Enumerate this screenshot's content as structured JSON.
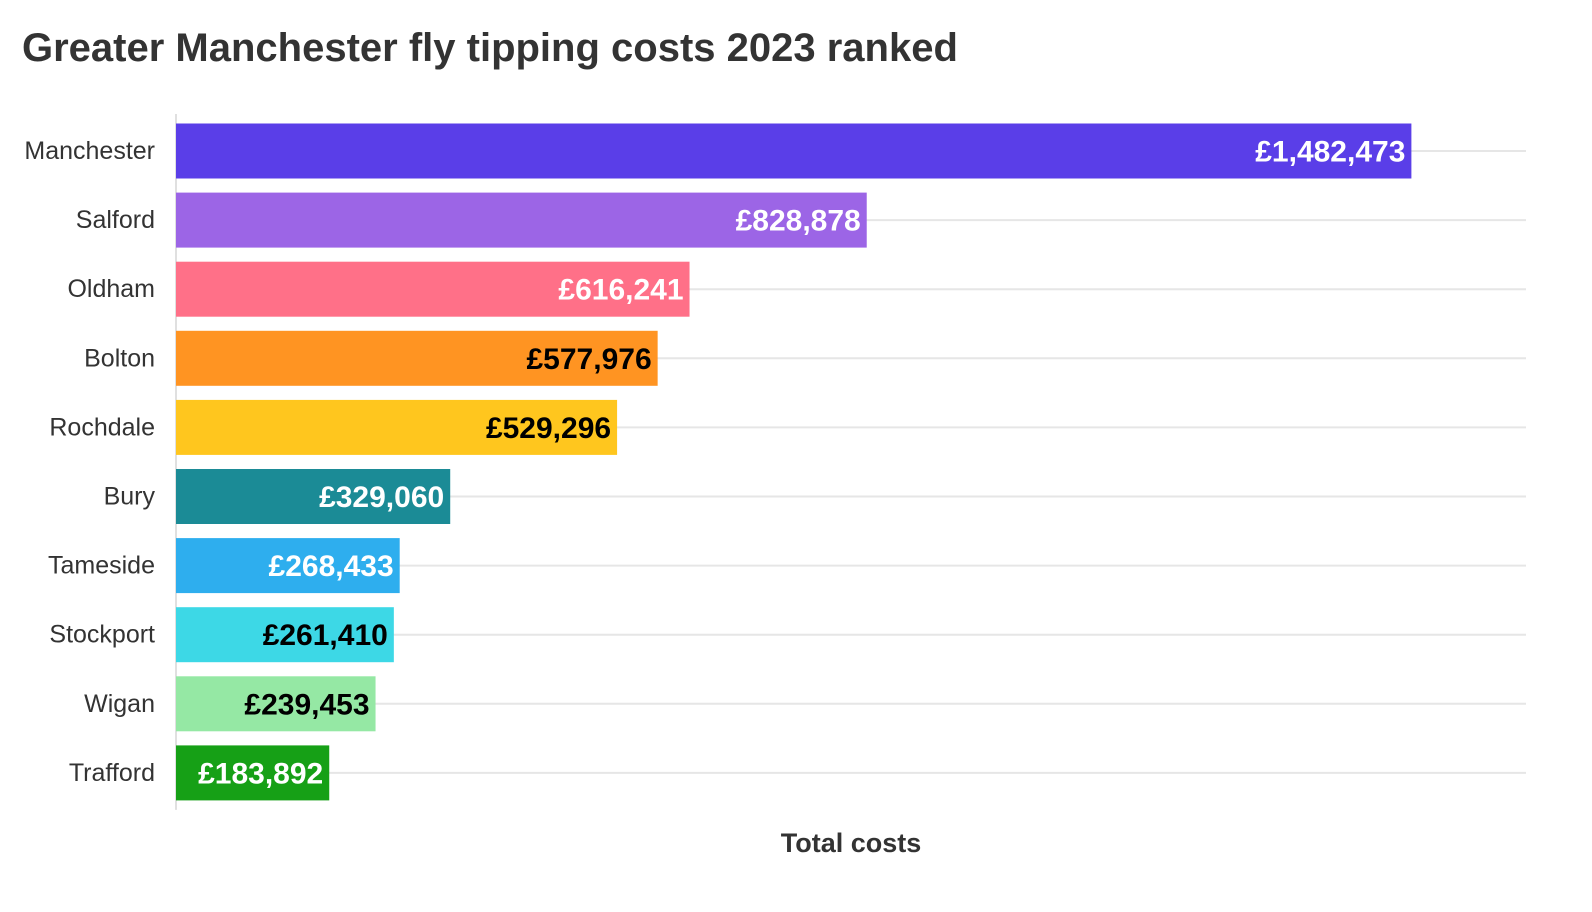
{
  "chart_data": {
    "type": "bar",
    "orientation": "horizontal",
    "title": "Greater Manchester fly tipping costs 2023 ranked",
    "xlabel": "Total costs",
    "ylabel": "",
    "xlim": [
      0,
      1620000
    ],
    "grid": true,
    "legend": "none",
    "categories": [
      "Manchester",
      "Salford",
      "Oldham",
      "Bolton",
      "Rochdale",
      "Bury",
      "Tameside",
      "Stockport",
      "Wigan",
      "Trafford"
    ],
    "values": [
      1482473,
      828878,
      616241,
      577976,
      529296,
      329060,
      268433,
      261410,
      239453,
      183892
    ],
    "value_labels": [
      "£1,482,473",
      "£828,878",
      "£616,241",
      "£577,976",
      "£529,296",
      "£329,060",
      "£268,433",
      "£261,410",
      "£239,453",
      "£183,892"
    ],
    "colors": [
      "#5a3ee8",
      "#9c65e6",
      "#ff7088",
      "#ff9422",
      "#ffc61e",
      "#1b8b96",
      "#2eaeee",
      "#3dd8e6",
      "#95e8a4",
      "#16a016"
    ],
    "label_colors": [
      "#ffffff",
      "#ffffff",
      "#ffffff",
      "#000000",
      "#000000",
      "#ffffff",
      "#ffffff",
      "#000000",
      "#000000",
      "#ffffff"
    ]
  }
}
